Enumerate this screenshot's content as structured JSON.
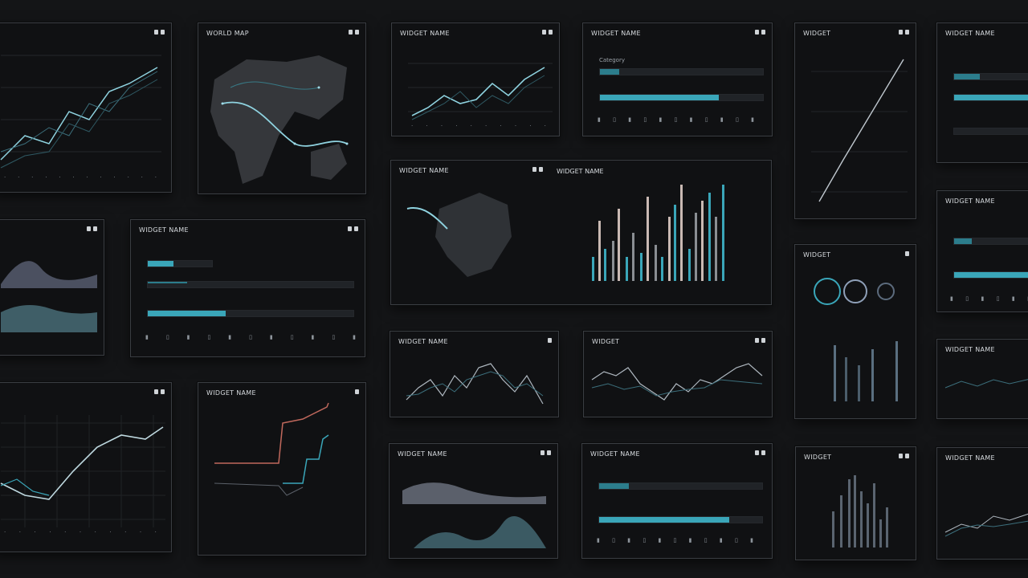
{
  "canvas": {
    "background": "#141517",
    "accent": "#3aa6b9",
    "line": "#8fd3e0",
    "muted": "#5b6169"
  },
  "panels": {
    "p1": {
      "title": ""
    },
    "p2": {
      "title": "WORLD MAP"
    },
    "p3": {
      "title": "WIDGET NAME"
    },
    "p4": {
      "title": "WIDGET NAME",
      "label": "Category"
    },
    "p5": {
      "title": "WIDGET"
    },
    "p6": {
      "title": "WIDGET NAME"
    },
    "p7": {
      "title": ""
    },
    "p8": {
      "title": "WIDGET NAME"
    },
    "p9a": {
      "title": "WIDGET NAME"
    },
    "p9b": {
      "title": "WIDGET NAME"
    },
    "p10": {
      "title": "WIDGET"
    },
    "p11": {
      "title": "WIDGET NAME"
    },
    "p12": {
      "title": ""
    },
    "p13": {
      "title": "WIDGET NAME"
    },
    "p14": {
      "title": "WIDGET NAME"
    },
    "p15": {
      "title": "WIDGET"
    },
    "p16": {
      "title": "WIDGET NAME"
    },
    "p17": {
      "title": "WIDGET NAME"
    },
    "p18": {
      "title": "WIDGET NAME"
    },
    "p19": {
      "title": "WIDGET"
    },
    "p20": {
      "title": "WIDGET NAME"
    }
  },
  "progress": {
    "p4_main": 0.73,
    "p8_small": 0.4,
    "p8_main": 0.38,
    "p6_main": 1.0,
    "p13_main": 1.0,
    "p18_main": 0.8
  }
}
